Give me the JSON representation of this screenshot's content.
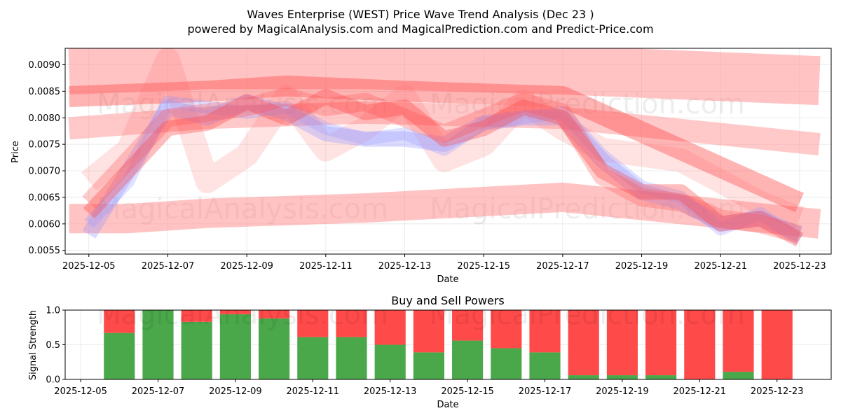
{
  "chart_data": [
    {
      "type": "line",
      "title": "Waves Enterprise (WEST) Price Wave Trend Analysis (Dec 23 )",
      "subtitle": "powered by MagicalAnalysis.com and MagicalPrediction.com and Predict-Price.com",
      "xlabel": "Date",
      "ylabel": "Price",
      "x_ticks": [
        "2025-12-05",
        "2025-12-07",
        "2025-12-09",
        "2025-12-11",
        "2025-12-13",
        "2025-12-15",
        "2025-12-17",
        "2025-12-19",
        "2025-12-21",
        "2025-12-23"
      ],
      "y_ticks": [
        "0.0055",
        "0.0060",
        "0.0065",
        "0.0070",
        "0.0075",
        "0.0080",
        "0.0085",
        "0.0090"
      ],
      "y_tick_values": [
        0.0055,
        0.006,
        0.0065,
        0.007,
        0.0075,
        0.008,
        0.0085,
        0.009
      ],
      "ylim": [
        0.00543,
        0.00931
      ],
      "x_day_range": [
        4.4,
        23.8
      ],
      "grid": true,
      "watermarks": [
        "MagicalAnalysis.com",
        "MagicalPrediction.com"
      ],
      "series": [
        {
          "name": "blue wave 1",
          "color": "#9999ff",
          "x": [
            5,
            6,
            7,
            8,
            9,
            10,
            11,
            12,
            13,
            14,
            15,
            16,
            17,
            18,
            19,
            20,
            21,
            22,
            23
          ],
          "values": [
            0.0058,
            0.007,
            0.0082,
            0.008,
            0.0083,
            0.0081,
            0.0077,
            0.0076,
            0.0076,
            0.0075,
            0.0079,
            0.008,
            0.008,
            0.0072,
            0.0066,
            0.0064,
            0.006,
            0.0061,
            0.0058
          ]
        },
        {
          "name": "blue wave 2",
          "color": "#9999ff",
          "x": [
            5,
            6,
            7,
            8,
            9,
            10,
            11,
            12,
            13,
            14,
            15,
            16,
            17,
            18,
            19,
            20,
            21,
            22,
            23
          ],
          "values": [
            0.006,
            0.0068,
            0.0083,
            0.0082,
            0.0081,
            0.0082,
            0.0078,
            0.0076,
            0.0077,
            0.0074,
            0.0079,
            0.008,
            0.0081,
            0.0073,
            0.0067,
            0.0065,
            0.0059,
            0.0062,
            0.0057
          ]
        },
        {
          "name": "red wave 1",
          "color": "#ff4444",
          "x": [
            5,
            6,
            7,
            8,
            9,
            10,
            11,
            12,
            13,
            14,
            15,
            16,
            17,
            18,
            19,
            20,
            21,
            22,
            23
          ],
          "values": [
            0.0062,
            0.007,
            0.0078,
            0.0079,
            0.0083,
            0.008,
            0.0084,
            0.0081,
            0.0082,
            0.0076,
            0.0078,
            0.0082,
            0.008,
            0.007,
            0.0066,
            0.0066,
            0.006,
            0.0061,
            0.0057
          ]
        },
        {
          "name": "red wave 2",
          "color": "#ff5555",
          "x": [
            5,
            6,
            7,
            8,
            9,
            10,
            11,
            12,
            13,
            14,
            15,
            16,
            17,
            18,
            19,
            20,
            21,
            22,
            23
          ],
          "values": [
            0.0064,
            0.0072,
            0.008,
            0.0081,
            0.0082,
            0.0084,
            0.0082,
            0.0083,
            0.008,
            0.0077,
            0.008,
            0.0083,
            0.0081,
            0.0069,
            0.0065,
            0.0064,
            0.0061,
            0.006,
            0.0058
          ]
        },
        {
          "name": "red wave 3",
          "color": "#ff6666",
          "x": [
            5,
            6,
            7,
            8,
            9,
            10,
            11,
            12,
            13,
            14,
            15,
            16,
            17,
            18,
            19,
            20,
            21,
            22,
            23
          ],
          "values": [
            0.0068,
            0.0074,
            0.0091,
            0.0068,
            0.0073,
            0.0084,
            0.0074,
            0.0078,
            0.0084,
            0.0072,
            0.0075,
            0.0083,
            0.0078,
            0.0074,
            0.0073,
            0.0072,
            0.0068,
            0.0064,
            0.0061
          ]
        },
        {
          "name": "trend band top",
          "color": "#ff8888",
          "x": [
            4.5,
            8,
            12,
            17,
            23.5
          ],
          "values": [
            0.0089,
            0.009,
            0.009,
            0.0089,
            0.0087
          ]
        },
        {
          "name": "trend band upper",
          "color": "#ff4444",
          "x": [
            4.5,
            8,
            10,
            13,
            17,
            23
          ],
          "values": [
            0.0084,
            0.0085,
            0.0086,
            0.0085,
            0.0084,
            0.0064
          ]
        },
        {
          "name": "trend band middle",
          "color": "#ff8888",
          "x": [
            4.5,
            8,
            12,
            17,
            23.5
          ],
          "values": [
            0.0078,
            0.008,
            0.0081,
            0.008,
            0.0075
          ]
        },
        {
          "name": "trend band lower",
          "color": "#ff8888",
          "x": [
            4.5,
            6,
            8,
            12,
            17,
            23.5
          ],
          "values": [
            0.0061,
            0.0061,
            0.0062,
            0.0063,
            0.0065,
            0.006
          ]
        }
      ]
    },
    {
      "type": "bar",
      "title": "Buy and Sell Powers",
      "xlabel": "Date",
      "ylabel": "Signal Strength",
      "x_ticks": [
        "2025-12-05",
        "2025-12-07",
        "2025-12-09",
        "2025-12-11",
        "2025-12-13",
        "2025-12-15",
        "2025-12-17",
        "2025-12-19",
        "2025-12-21",
        "2025-12-23"
      ],
      "y_ticks": [
        "0.0",
        "0.5",
        "1.0"
      ],
      "y_tick_values": [
        0,
        0.5,
        1.0
      ],
      "ylim": [
        0,
        1.0
      ],
      "x_day_range": [
        4.6,
        24.4
      ],
      "grid": true,
      "buy_color": "#4aa84a",
      "sell_color": "#ff4a4a",
      "days": [
        6,
        7,
        8,
        9,
        10,
        11,
        12,
        13,
        14,
        15,
        16,
        17,
        18,
        19,
        20,
        21,
        22,
        23
      ],
      "series": [
        {
          "name": "Buy",
          "values": [
            0.67,
            1.0,
            0.83,
            0.94,
            0.88,
            0.61,
            0.61,
            0.5,
            0.39,
            0.56,
            0.45,
            0.39,
            0.06,
            0.06,
            0.06,
            0.0,
            0.11,
            0.0
          ]
        },
        {
          "name": "Sell",
          "values": [
            0.33,
            0.0,
            0.17,
            0.06,
            0.12,
            0.39,
            0.39,
            0.5,
            0.61,
            0.44,
            0.55,
            0.61,
            0.94,
            0.94,
            0.94,
            1.0,
            0.89,
            1.0
          ]
        }
      ]
    }
  ]
}
